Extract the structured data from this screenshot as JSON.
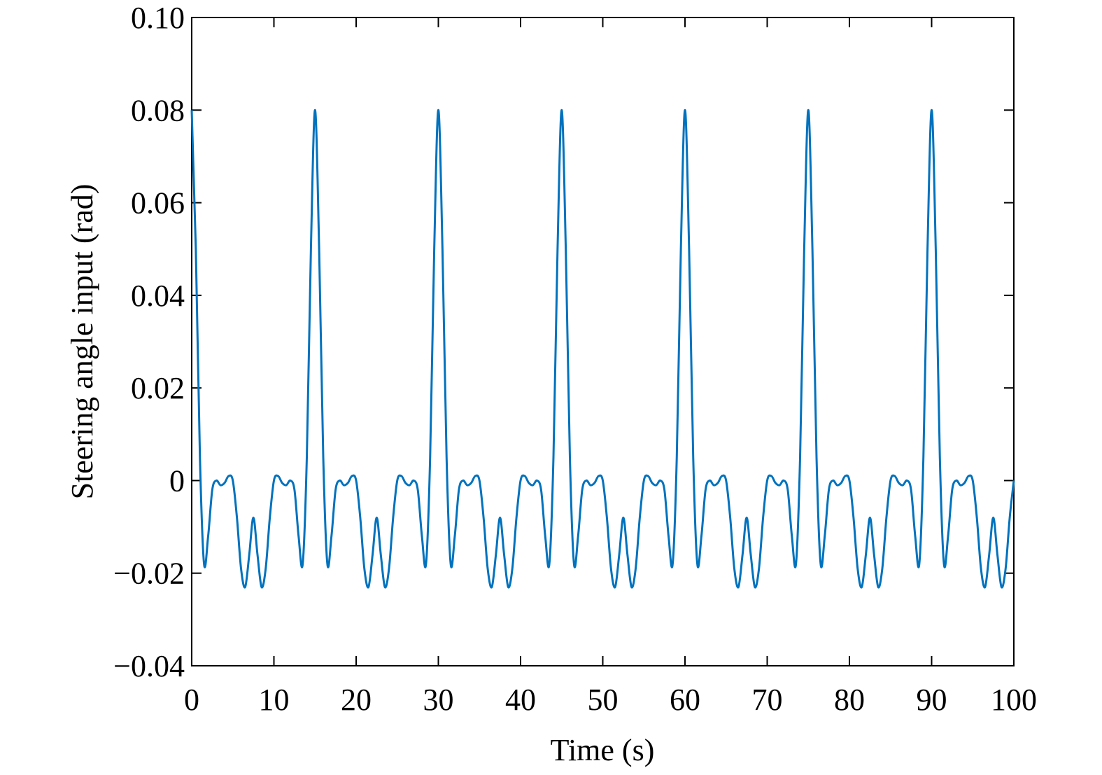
{
  "chart_data": {
    "type": "line",
    "xlabel": "Time (s)",
    "ylabel": "Steering angle input (rad)",
    "xlim": [
      0,
      100
    ],
    "xticks": [
      0,
      10,
      20,
      30,
      40,
      50,
      60,
      70,
      80,
      90,
      100
    ],
    "ylim": [
      -0.04,
      0.1
    ],
    "yticks": [
      {
        "value": -0.04,
        "label": "−0.04"
      },
      {
        "value": -0.02,
        "label": "−0.02"
      },
      0,
      0.02,
      0.04,
      0.06,
      0.08,
      {
        "value": 0.1,
        "label": "0.10"
      }
    ],
    "x": [
      0,
      0.5,
      1,
      1.5,
      2,
      2.5,
      3,
      3.5,
      4,
      4.5,
      5,
      5.5,
      6,
      6.5,
      7,
      7.5,
      8,
      8.5,
      9,
      9.5,
      10,
      10.5,
      11,
      11.5,
      12,
      12.5,
      13,
      13.5,
      14,
      14.5,
      15,
      15.5,
      16,
      16.5,
      17,
      17.5,
      18,
      18.5,
      19,
      19.5,
      20,
      20.5,
      21,
      21.5,
      22,
      22.5,
      23,
      23.5,
      24,
      24.5,
      25,
      25.5,
      26,
      26.5,
      27,
      27.5,
      28,
      28.5,
      29,
      29.5,
      30,
      30.5,
      31,
      31.5,
      32,
      32.5,
      33,
      33.5,
      34,
      34.5,
      35,
      35.5,
      36,
      36.5,
      37,
      37.5,
      38,
      38.5,
      39,
      39.5,
      40,
      40.5,
      41,
      41.5,
      42,
      42.5,
      43,
      43.5,
      44,
      44.5,
      45,
      45.5,
      46,
      46.5,
      47,
      47.5,
      48,
      48.5,
      49,
      49.5,
      50,
      50.5,
      51,
      51.5,
      52,
      52.5,
      53,
      53.5,
      54,
      54.5,
      55,
      55.5,
      56,
      56.5,
      57,
      57.5,
      58,
      58.5,
      59,
      59.5,
      60,
      60.5,
      61,
      61.5,
      62,
      62.5,
      63,
      63.5,
      64,
      64.5,
      65,
      65.5,
      66,
      66.5,
      67,
      67.5,
      68,
      68.5,
      69,
      69.5,
      70,
      70.5,
      71,
      71.5,
      72,
      72.5,
      73,
      73.5,
      74,
      74.5,
      75,
      75.5,
      76,
      76.5,
      77,
      77.5,
      78,
      78.5,
      79,
      79.5,
      80,
      80.5,
      81,
      81.5,
      82,
      82.5,
      83,
      83.5,
      84,
      84.5,
      85,
      85.5,
      86,
      86.5,
      87,
      87.5,
      88,
      88.5,
      89,
      89.5,
      90,
      90.5,
      91,
      91.5,
      92,
      92.5,
      93,
      93.5,
      94,
      94.5,
      95,
      95.5,
      96,
      96.5,
      97,
      97.5,
      98,
      98.5,
      99,
      99.5,
      100
    ],
    "series": [
      {
        "color": "#0072bd",
        "values": [
          0.08,
          0.05,
          0.005,
          -0.018,
          -0.012,
          -0.002,
          0,
          -0.001,
          -0.0005,
          0.001,
          0,
          -0.008,
          -0.019,
          -0.023,
          -0.016,
          -0.008,
          -0.016,
          -0.023,
          -0.019,
          -0.008,
          0,
          0.001,
          -0.0005,
          -0.001,
          0,
          -0.002,
          -0.012,
          -0.018,
          0.005,
          0.05,
          0.08,
          0.05,
          0.005,
          -0.018,
          -0.012,
          -0.002,
          0,
          -0.001,
          -0.0005,
          0.001,
          0,
          -0.008,
          -0.019,
          -0.023,
          -0.016,
          -0.008,
          -0.016,
          -0.023,
          -0.019,
          -0.008,
          0,
          0.001,
          -0.0005,
          -0.001,
          0,
          -0.002,
          -0.012,
          -0.018,
          0.005,
          0.05,
          0.08,
          0.05,
          0.005,
          -0.018,
          -0.012,
          -0.002,
          0,
          -0.001,
          -0.0005,
          0.001,
          0,
          -0.008,
          -0.019,
          -0.023,
          -0.016,
          -0.008,
          -0.016,
          -0.023,
          -0.019,
          -0.008,
          0,
          0.001,
          -0.0005,
          -0.001,
          0,
          -0.002,
          -0.012,
          -0.018,
          0.005,
          0.05,
          0.08,
          0.05,
          0.005,
          -0.018,
          -0.012,
          -0.002,
          0,
          -0.001,
          -0.0005,
          0.001,
          0,
          -0.008,
          -0.019,
          -0.023,
          -0.016,
          -0.008,
          -0.016,
          -0.023,
          -0.019,
          -0.008,
          0,
          0.001,
          -0.0005,
          -0.001,
          0,
          -0.002,
          -0.012,
          -0.018,
          0.005,
          0.05,
          0.08,
          0.05,
          0.005,
          -0.018,
          -0.012,
          -0.002,
          0,
          -0.001,
          -0.0005,
          0.001,
          0,
          -0.008,
          -0.019,
          -0.023,
          -0.016,
          -0.008,
          -0.016,
          -0.023,
          -0.019,
          -0.008,
          0,
          0.001,
          -0.0005,
          -0.001,
          0,
          -0.002,
          -0.012,
          -0.018,
          0.005,
          0.05,
          0.08,
          0.05,
          0.005,
          -0.018,
          -0.012,
          -0.002,
          0,
          -0.001,
          -0.0005,
          0.001,
          0,
          -0.008,
          -0.019,
          -0.023,
          -0.016,
          -0.008,
          -0.016,
          -0.023,
          -0.019,
          -0.008,
          0,
          0.001,
          -0.0005,
          -0.001,
          0,
          -0.002,
          -0.012,
          -0.018,
          0.005,
          0.05,
          0.08,
          0.05,
          0.005,
          -0.018,
          -0.012,
          -0.002,
          0,
          -0.001,
          -0.0005,
          0.001,
          0,
          -0.008,
          -0.019,
          -0.023,
          -0.016,
          -0.008,
          -0.016,
          -0.023,
          -0.019,
          -0.008,
          0
        ]
      }
    ]
  }
}
